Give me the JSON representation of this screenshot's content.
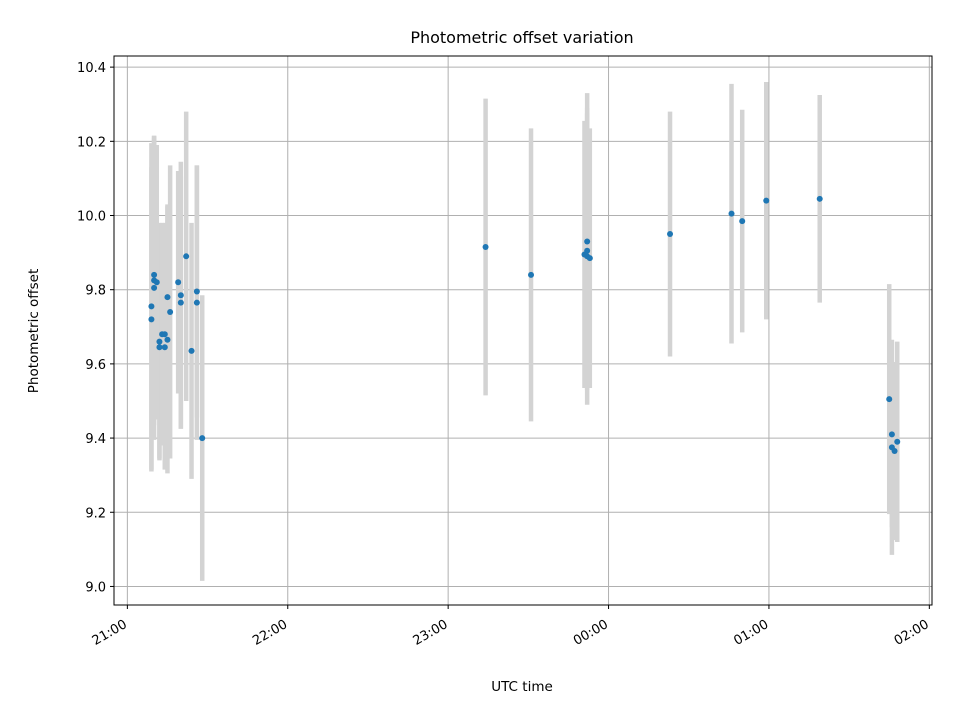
{
  "chart_data": {
    "type": "scatter",
    "title": "Photometric offset variation",
    "xlabel": "UTC time",
    "ylabel": "Photometric offset",
    "x_axis": "time",
    "xlim": [
      "20:55",
      "02:01"
    ],
    "ylim": [
      8.95,
      10.43
    ],
    "xticks": [
      "21:00",
      "22:00",
      "23:00",
      "00:00",
      "01:00",
      "02:00"
    ],
    "yticks": [
      9.0,
      9.2,
      9.4,
      9.6,
      9.8,
      10.0,
      10.2,
      10.4
    ],
    "grid": true,
    "errorbar_color": "#d3d3d3",
    "point_color": "#1f77b4",
    "series": [
      {
        "points": [
          {
            "t": "21:09",
            "y": 9.755,
            "err": 0.44
          },
          {
            "t": "21:09",
            "y": 9.72,
            "err": 0.41
          },
          {
            "t": "21:10",
            "y": 9.805,
            "err": 0.41
          },
          {
            "t": "21:10",
            "y": 9.84,
            "err": 0.37
          },
          {
            "t": "21:10",
            "y": 9.825,
            "err": 0.39
          },
          {
            "t": "21:11",
            "y": 9.82,
            "err": 0.37
          },
          {
            "t": "21:12",
            "y": 9.66,
            "err": 0.32
          },
          {
            "t": "21:12",
            "y": 9.645,
            "err": 0.3
          },
          {
            "t": "21:13",
            "y": 9.68,
            "err": 0.3
          },
          {
            "t": "21:14",
            "y": 9.68,
            "err": 0.3
          },
          {
            "t": "21:14",
            "y": 9.645,
            "err": 0.33
          },
          {
            "t": "21:15",
            "y": 9.665,
            "err": 0.36
          },
          {
            "t": "21:15",
            "y": 9.78,
            "err": 0.25
          },
          {
            "t": "21:16",
            "y": 9.74,
            "err": 0.395
          },
          {
            "t": "21:19",
            "y": 9.82,
            "err": 0.3
          },
          {
            "t": "21:20",
            "y": 9.785,
            "err": 0.36
          },
          {
            "t": "21:20",
            "y": 9.765,
            "err": 0.34
          },
          {
            "t": "21:22",
            "y": 9.89,
            "err": 0.39
          },
          {
            "t": "21:24",
            "y": 9.635,
            "err": 0.345
          },
          {
            "t": "21:26",
            "y": 9.795,
            "err": 0.34
          },
          {
            "t": "21:26",
            "y": 9.765,
            "err": 0.37
          },
          {
            "t": "21:28",
            "y": 9.4,
            "err": 0.385
          },
          {
            "t": "23:14",
            "y": 9.915,
            "err": 0.4
          },
          {
            "t": "23:31",
            "y": 9.84,
            "err": 0.395
          },
          {
            "t": "23:51",
            "y": 9.895,
            "err": 0.36
          },
          {
            "t": "23:52",
            "y": 9.89,
            "err": 0.4
          },
          {
            "t": "23:52",
            "y": 9.93,
            "err": 0.4
          },
          {
            "t": "23:52",
            "y": 9.905,
            "err": 0.37
          },
          {
            "t": "23:53",
            "y": 9.885,
            "err": 0.35
          },
          {
            "t": "00:23",
            "y": 9.95,
            "err": 0.33
          },
          {
            "t": "00:46",
            "y": 10.005,
            "err": 0.35
          },
          {
            "t": "00:50",
            "y": 9.985,
            "err": 0.3
          },
          {
            "t": "00:59",
            "y": 10.04,
            "err": 0.32
          },
          {
            "t": "01:19",
            "y": 10.045,
            "err": 0.28
          },
          {
            "t": "01:45",
            "y": 9.505,
            "err": 0.31
          },
          {
            "t": "01:46",
            "y": 9.41,
            "err": 0.25
          },
          {
            "t": "01:46",
            "y": 9.375,
            "err": 0.29
          },
          {
            "t": "01:47",
            "y": 9.365,
            "err": 0.24
          },
          {
            "t": "01:48",
            "y": 9.39,
            "err": 0.27
          }
        ]
      }
    ]
  }
}
